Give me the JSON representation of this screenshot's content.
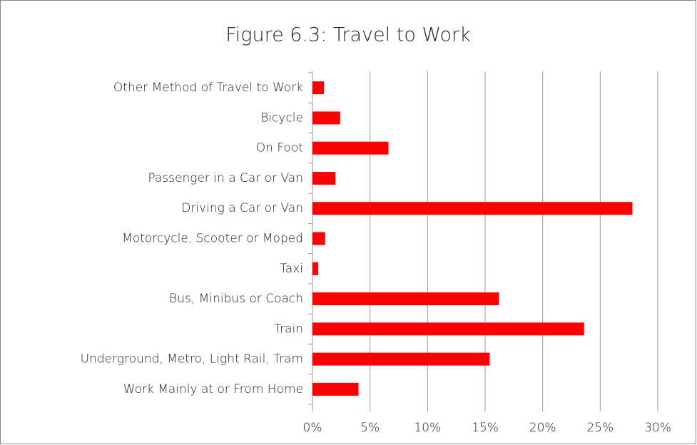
{
  "chart_data": {
    "type": "bar",
    "orientation": "horizontal",
    "title": "Figure 6.3: Travel to Work",
    "categories": [
      "Other Method of Travel to Work",
      "Bicycle",
      "On Foot",
      "Passenger in a Car or Van",
      "Driving a Car or Van",
      "Motorcycle, Scooter or Moped",
      "Taxi",
      "Bus, Minibus or Coach",
      "Train",
      "Underground, Metro, Light Rail, Tram",
      "Work Mainly at or From Home"
    ],
    "values": [
      1.0,
      2.4,
      6.6,
      2.0,
      27.8,
      1.1,
      0.5,
      16.2,
      23.6,
      15.4,
      4.0
    ],
    "color": "#ff0000",
    "xlim": [
      0,
      30
    ],
    "xticks": [
      {
        "value": 0,
        "label": "0%"
      },
      {
        "value": 5,
        "label": "5%"
      },
      {
        "value": 10,
        "label": "10%"
      },
      {
        "value": 15,
        "label": "15%"
      },
      {
        "value": 20,
        "label": "20%"
      },
      {
        "value": 25,
        "label": "25%"
      },
      {
        "value": 30,
        "label": "30%"
      }
    ],
    "grid": true
  }
}
